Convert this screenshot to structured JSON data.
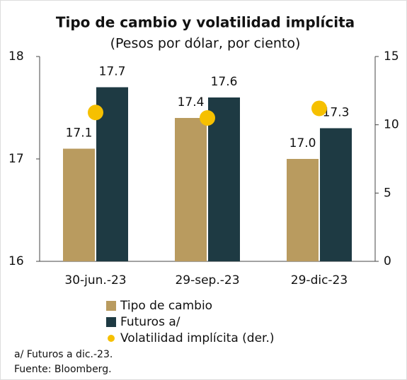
{
  "chart_data": {
    "type": "bar",
    "title": "Tipo de cambio y volatilidad implícita",
    "subtitle": "(Pesos por dólar, por ciento)",
    "categories": [
      "30-jun.-23",
      "29-sep.-23",
      "29-dic-23"
    ],
    "series": [
      {
        "name": "Tipo de cambio",
        "color": "#b99b5f",
        "values": [
          17.1,
          17.4,
          17.0
        ],
        "value_labels": [
          "17.1",
          "17.4",
          "17.0"
        ]
      },
      {
        "name": "Futuros a/",
        "color": "#1e3a43",
        "values": [
          17.7,
          17.6,
          17.3
        ],
        "value_labels": [
          "17.7",
          "17.6",
          "17.3"
        ]
      },
      {
        "name": "Volatilidad implícita (der.)",
        "color": "#f6c000",
        "type": "scatter",
        "axis": "y2",
        "values": [
          10.9,
          10.5,
          11.2
        ]
      }
    ],
    "ylim": [
      16,
      18
    ],
    "yticks": [
      16,
      17,
      18
    ],
    "y2lim": [
      0,
      15
    ],
    "y2ticks": [
      0,
      5,
      10,
      15
    ],
    "notes": [
      "a/ Futuros a dic.-23.",
      "Fuente: Bloomberg."
    ]
  }
}
